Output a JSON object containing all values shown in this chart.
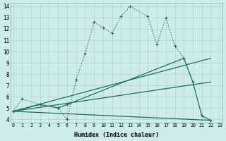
{
  "xlabel": "Humidex (Indice chaleur)",
  "xlim": [
    -0.3,
    23.3
  ],
  "ylim": [
    3.7,
    14.3
  ],
  "xticks": [
    0,
    1,
    2,
    3,
    4,
    5,
    6,
    7,
    8,
    9,
    10,
    11,
    12,
    13,
    14,
    15,
    16,
    17,
    18,
    19,
    20,
    21,
    22,
    23
  ],
  "yticks": [
    4,
    5,
    6,
    7,
    8,
    9,
    10,
    11,
    12,
    13,
    14
  ],
  "bg_color": "#ceecea",
  "line_color": "#1e6b62",
  "lw": 0.9,
  "ms": 3.5,
  "line1_x": [
    0,
    1,
    3,
    5,
    6,
    7,
    8,
    9,
    10,
    11,
    12,
    13,
    15,
    16,
    17,
    18,
    19
  ],
  "line1_y": [
    4.7,
    5.8,
    5.3,
    5.0,
    4.0,
    7.5,
    9.8,
    12.6,
    12.1,
    11.6,
    13.1,
    14.0,
    13.1,
    10.6,
    13.0,
    10.5,
    9.4
  ],
  "line2_x": [
    0,
    3,
    5,
    6,
    19,
    20,
    21,
    22
  ],
  "line2_y": [
    4.7,
    5.3,
    5.0,
    5.3,
    9.4,
    7.3,
    4.3,
    3.9
  ],
  "line3_x": [
    0,
    22
  ],
  "line3_y": [
    4.7,
    9.4
  ],
  "line4_x": [
    0,
    22
  ],
  "line4_y": [
    4.7,
    7.3
  ],
  "line5_x": [
    0,
    22
  ],
  "line5_y": [
    4.7,
    3.9
  ]
}
